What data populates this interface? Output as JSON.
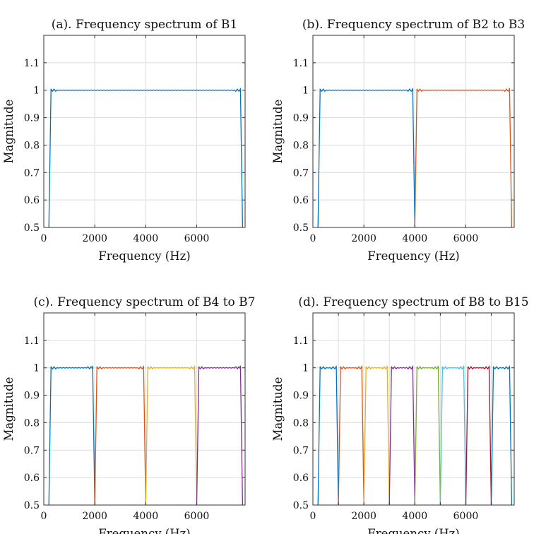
{
  "chart_data": [
    {
      "type": "line",
      "title": "(a). Frequency spectrum of B1",
      "xlabel": "Frequency (Hz)",
      "ylabel": "Magnitude",
      "xlim": [
        0,
        7900
      ],
      "ylim": [
        0.5,
        1.2
      ],
      "xticks": [
        0,
        2000,
        4000,
        6000
      ],
      "xtick_labels": [
        "0",
        "2000",
        "4000",
        "6000"
      ],
      "yticks": [
        0.5,
        0.6,
        0.7,
        0.8,
        0.9,
        1,
        1.1
      ],
      "ytick_labels": [
        "0.5",
        "0.6",
        "0.7",
        "0.8",
        "0.9",
        "1",
        "1.1"
      ],
      "grid": true,
      "series": [
        {
          "color": "#0072BD",
          "passband": [
            200,
            7800
          ],
          "magnitude": 1.0
        }
      ]
    },
    {
      "type": "line",
      "title": "(b). Frequency spectrum of B2 to B3",
      "xlabel": "Frequency (Hz)",
      "ylabel": "Magnitude",
      "xlim": [
        0,
        7900
      ],
      "ylim": [
        0.5,
        1.2
      ],
      "xticks": [
        0,
        2000,
        4000,
        6000
      ],
      "xtick_labels": [
        "0",
        "2000",
        "4000",
        "6000"
      ],
      "yticks": [
        0.5,
        0.6,
        0.7,
        0.8,
        0.9,
        1,
        1.1
      ],
      "ytick_labels": [
        "0.5",
        "0.6",
        "0.7",
        "0.8",
        "0.9",
        "1",
        "1.1"
      ],
      "grid": true,
      "series": [
        {
          "color": "#0072BD",
          "passband": [
            200,
            4000
          ],
          "magnitude": 1.0
        },
        {
          "color": "#D95319",
          "passband": [
            4000,
            7800
          ],
          "magnitude": 1.0
        }
      ]
    },
    {
      "type": "line",
      "title": "(c). Frequency spectrum of B4 to B7",
      "xlabel": "Frequency (Hz)",
      "ylabel": "Magnitude",
      "xlim": [
        0,
        7900
      ],
      "ylim": [
        0.5,
        1.2
      ],
      "xticks": [
        0,
        2000,
        4000,
        6000
      ],
      "xtick_labels": [
        "0",
        "2000",
        "4000",
        "6000"
      ],
      "yticks": [
        0.5,
        0.6,
        0.7,
        0.8,
        0.9,
        1,
        1.1
      ],
      "ytick_labels": [
        "0.5",
        "0.6",
        "0.7",
        "0.8",
        "0.9",
        "1",
        "1.1"
      ],
      "grid": true,
      "series": [
        {
          "color": "#0072BD",
          "passband": [
            200,
            2000
          ],
          "magnitude": 1.0
        },
        {
          "color": "#D95319",
          "passband": [
            2000,
            4000
          ],
          "magnitude": 1.0
        },
        {
          "color": "#EDB120",
          "passband": [
            4000,
            6000
          ],
          "magnitude": 1.0
        },
        {
          "color": "#7E2F8E",
          "passband": [
            6000,
            7800
          ],
          "magnitude": 1.0
        }
      ]
    },
    {
      "type": "line",
      "title": "(d). Frequency spectrum of B8 to B15",
      "xlabel": "Frequency (Hz)",
      "ylabel": "Magnitude",
      "xlim": [
        0,
        7900
      ],
      "ylim": [
        0.5,
        1.2
      ],
      "xticks": [
        0,
        1000,
        2000,
        3000,
        4000,
        5000,
        6000,
        7000
      ],
      "xtick_labels": [
        "0",
        "",
        "2000",
        "",
        "4000",
        "",
        "6000",
        ""
      ],
      "yticks": [
        0.5,
        0.6,
        0.7,
        0.8,
        0.9,
        1,
        1.1
      ],
      "ytick_labels": [
        "0.5",
        "0.6",
        "0.7",
        "0.8",
        "0.9",
        "1",
        "1.1"
      ],
      "grid": true,
      "series": [
        {
          "color": "#0072BD",
          "passband": [
            200,
            1000
          ],
          "magnitude": 1.0
        },
        {
          "color": "#D95319",
          "passband": [
            1000,
            2000
          ],
          "magnitude": 1.0
        },
        {
          "color": "#EDB120",
          "passband": [
            2000,
            3000
          ],
          "magnitude": 1.0
        },
        {
          "color": "#7E2F8E",
          "passband": [
            3000,
            4000
          ],
          "magnitude": 1.0
        },
        {
          "color": "#77AC30",
          "passband": [
            4000,
            5000
          ],
          "magnitude": 1.0
        },
        {
          "color": "#4DBEEE",
          "passband": [
            5000,
            6000
          ],
          "magnitude": 1.0
        },
        {
          "color": "#A2142F",
          "passband": [
            6000,
            7000
          ],
          "magnitude": 1.0
        },
        {
          "color": "#0072BD",
          "passband": [
            7000,
            7800
          ],
          "magnitude": 1.0
        }
      ]
    }
  ]
}
